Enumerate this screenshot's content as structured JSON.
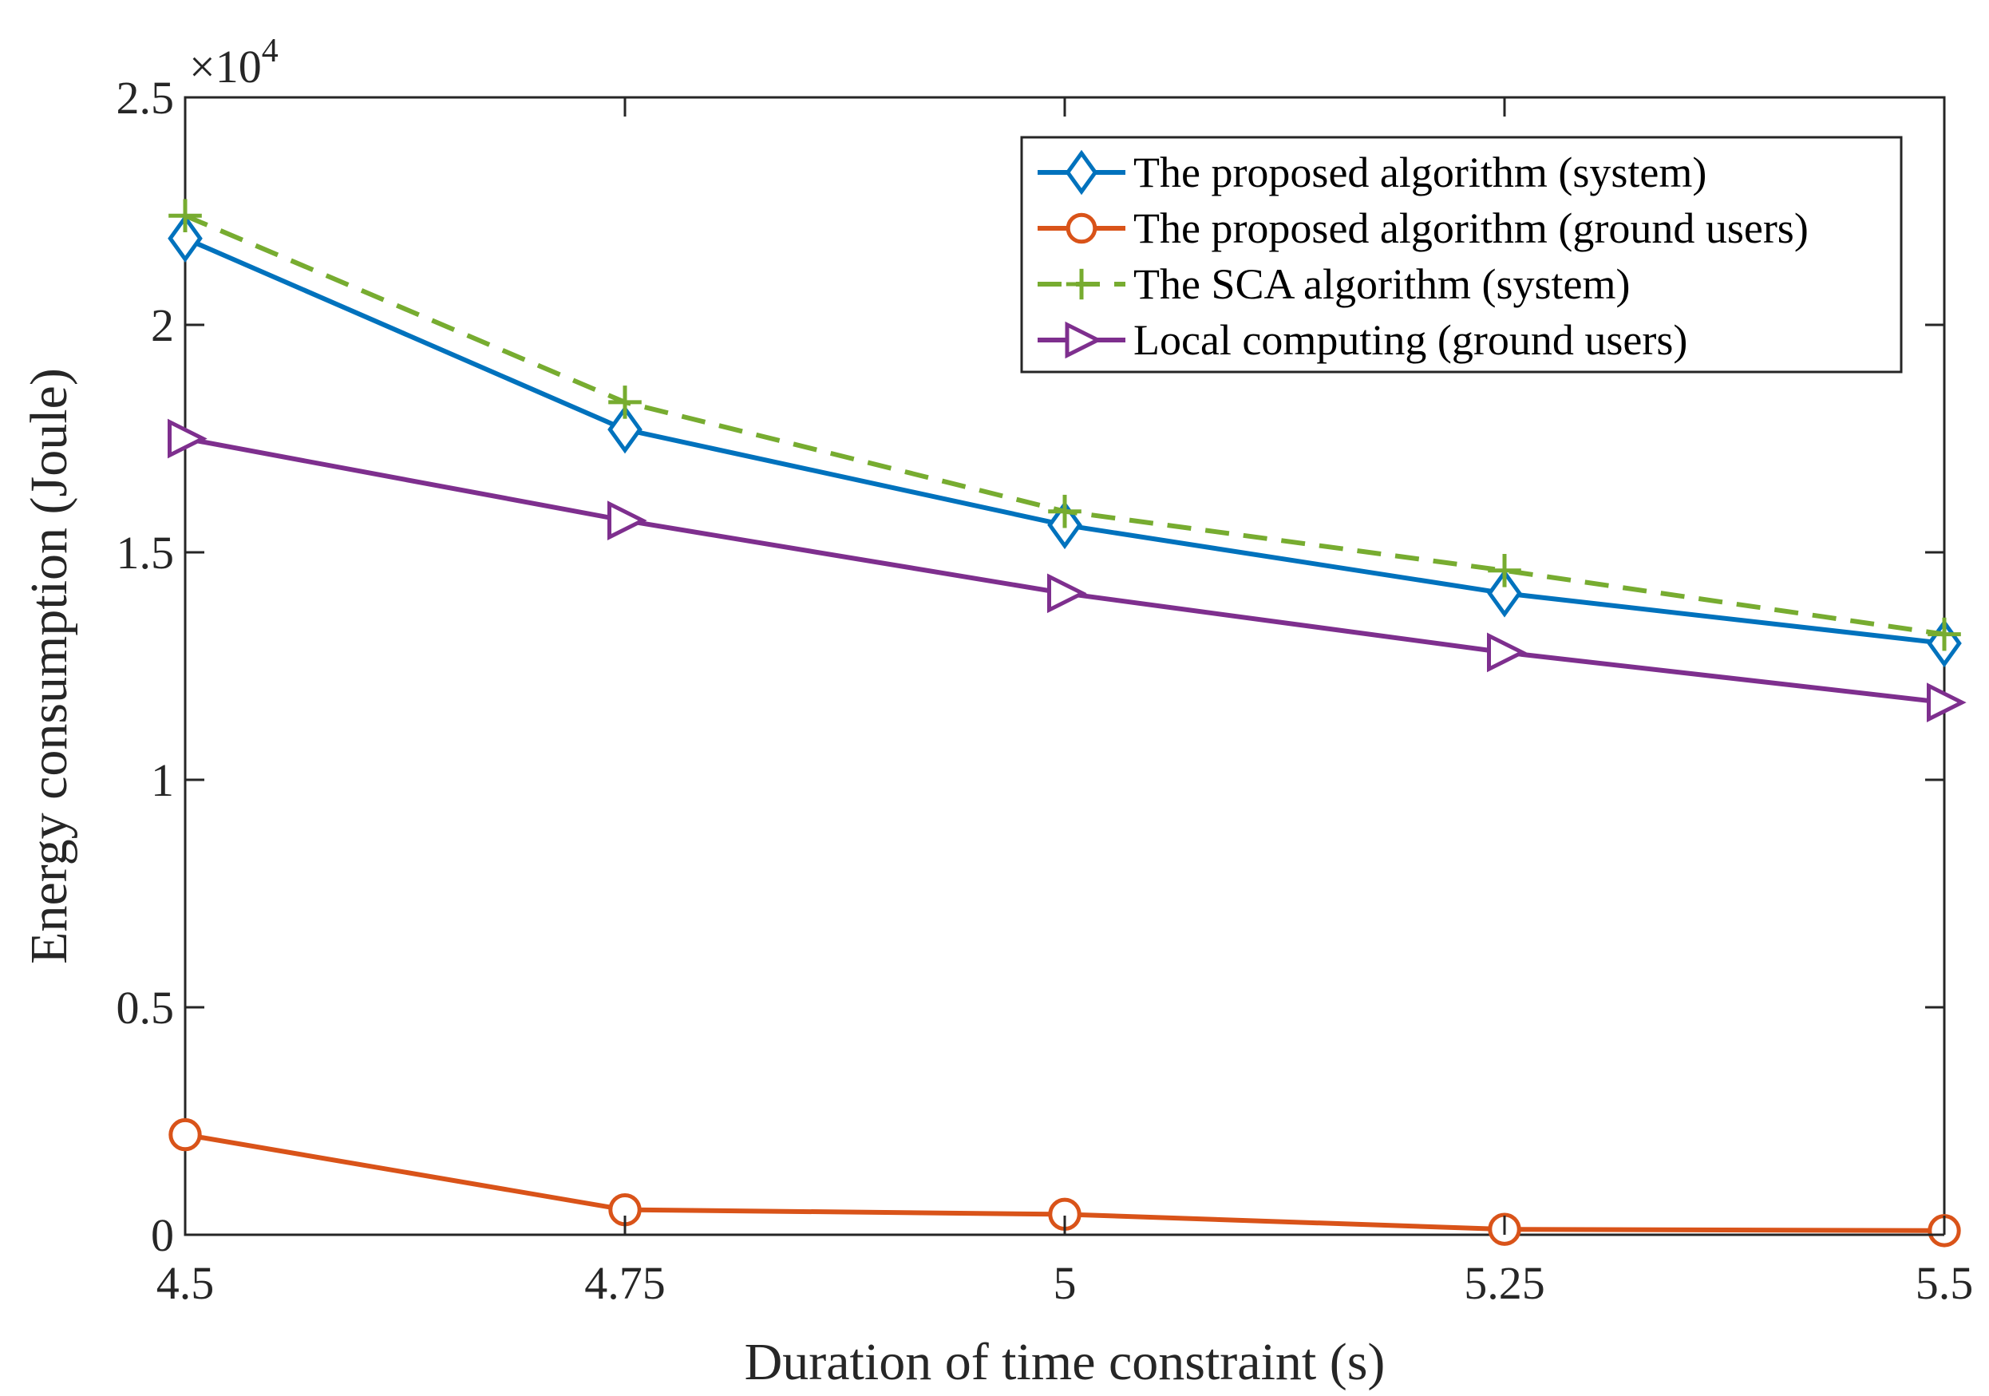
{
  "chart_data": {
    "type": "line",
    "title": "",
    "xlabel": "Duration of time constraint (s)",
    "ylabel": "Energy consumption (Joule)",
    "y_multiplier": {
      "base": "×10",
      "exponent": "4"
    },
    "x": [
      4.5,
      4.75,
      5,
      5.25,
      5.5
    ],
    "x_tick_labels": [
      "4.5",
      "4.75",
      "5",
      "5.25",
      "5.5"
    ],
    "y_tick_values": [
      0,
      0.5,
      1,
      1.5,
      2,
      2.5
    ],
    "y_tick_labels": [
      "0",
      "0.5",
      "1",
      "1.5",
      "2",
      "2.5"
    ],
    "xlim": [
      4.5,
      5.5
    ],
    "ylim": [
      0,
      2.5
    ],
    "grid": false,
    "legend_position": "top-right",
    "series": [
      {
        "name": "The proposed algorithm (system)",
        "color": "#0072BD",
        "marker": "diamond",
        "dash": "solid",
        "values": [
          2.19,
          1.77,
          1.56,
          1.41,
          1.3
        ]
      },
      {
        "name": "The proposed algorithm (ground users)",
        "color": "#D95319",
        "marker": "circle",
        "dash": "solid",
        "values": [
          0.22,
          0.055,
          0.045,
          0.012,
          0.009
        ]
      },
      {
        "name": "The SCA algorithm (system)",
        "color": "#77AC30",
        "marker": "plus",
        "dash": "dashed",
        "values": [
          2.24,
          1.83,
          1.59,
          1.46,
          1.32
        ]
      },
      {
        "name": "Local computing (ground users)",
        "color": "#7E2F8E",
        "marker": "triangle-right",
        "dash": "solid",
        "values": [
          1.75,
          1.57,
          1.41,
          1.28,
          1.17
        ]
      }
    ]
  }
}
